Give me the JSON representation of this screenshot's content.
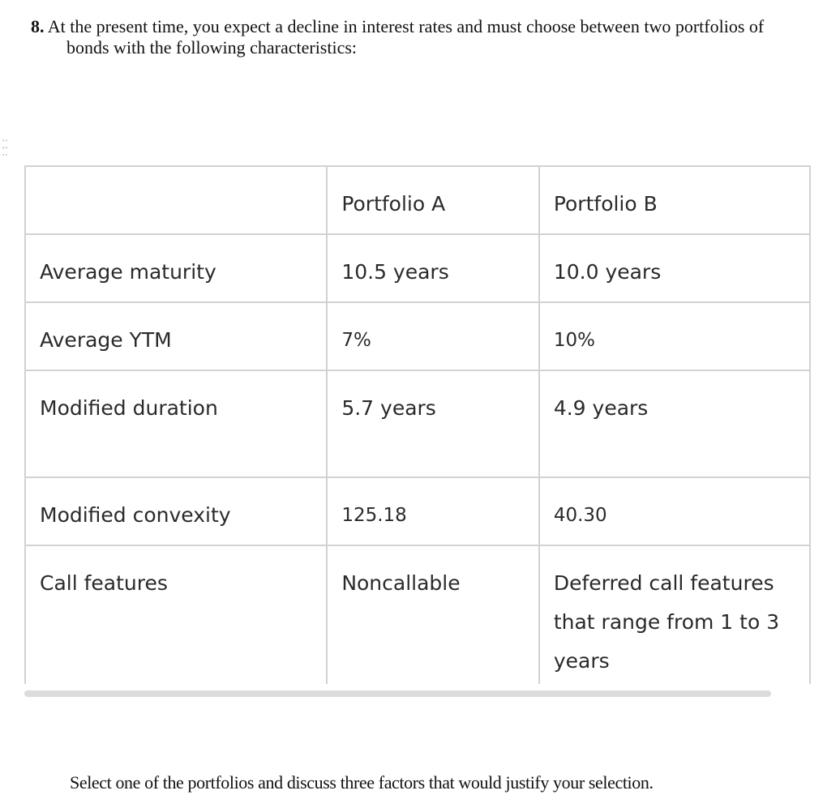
{
  "question": {
    "number": "8.",
    "line1": "At the present time, you expect a decline in interest rates and must choose between two portfolios of",
    "line2": "bonds with the following characteristics:"
  },
  "table": {
    "headers": [
      "",
      "Portfolio A",
      "Portfolio B"
    ],
    "rows": [
      [
        "Average maturity",
        "10.5 years",
        "10.0 years"
      ],
      [
        "Average YTM",
        "7%",
        "10%"
      ],
      [
        "Modified duration",
        "5.7 years",
        "4.9 years"
      ],
      [
        "Modified convexity",
        "125.18",
        "40.30"
      ],
      [
        "Call features",
        "Noncallable",
        "Deferred call features that range from 1 to 3 years"
      ]
    ]
  },
  "footer": {
    "prompt": "Select one of the portfolios and discuss three factors that would justify your selection."
  }
}
